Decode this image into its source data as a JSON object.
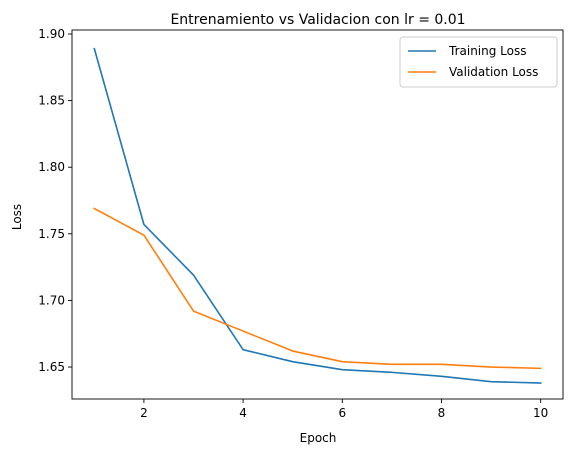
{
  "chart_data": {
    "type": "line",
    "title": "Entrenamiento vs Validacion con lr = 0.01",
    "xlabel": "Epoch",
    "ylabel": "Loss",
    "xlim": [
      0.55,
      10.45
    ],
    "ylim": [
      1.626,
      1.903
    ],
    "xticks": [
      2,
      4,
      6,
      8,
      10
    ],
    "xtick_labels": [
      "2",
      "4",
      "6",
      "8",
      "10"
    ],
    "yticks": [
      1.65,
      1.7,
      1.75,
      1.8,
      1.85,
      1.9
    ],
    "ytick_labels": [
      "1.65",
      "1.70",
      "1.75",
      "1.80",
      "1.85",
      "1.90"
    ],
    "grid": false,
    "legend_position": "top-right",
    "x": [
      1,
      2,
      3,
      4,
      5,
      6,
      7,
      8,
      9,
      10
    ],
    "series": [
      {
        "name": "Training Loss",
        "color": "#1f77b4",
        "values": [
          1.889,
          1.757,
          1.719,
          1.663,
          1.654,
          1.648,
          1.646,
          1.643,
          1.639,
          1.638
        ]
      },
      {
        "name": "Validation Loss",
        "color": "#ff7f0e",
        "values": [
          1.769,
          1.749,
          1.692,
          1.677,
          1.662,
          1.654,
          1.652,
          1.652,
          1.65,
          1.649
        ]
      }
    ]
  }
}
